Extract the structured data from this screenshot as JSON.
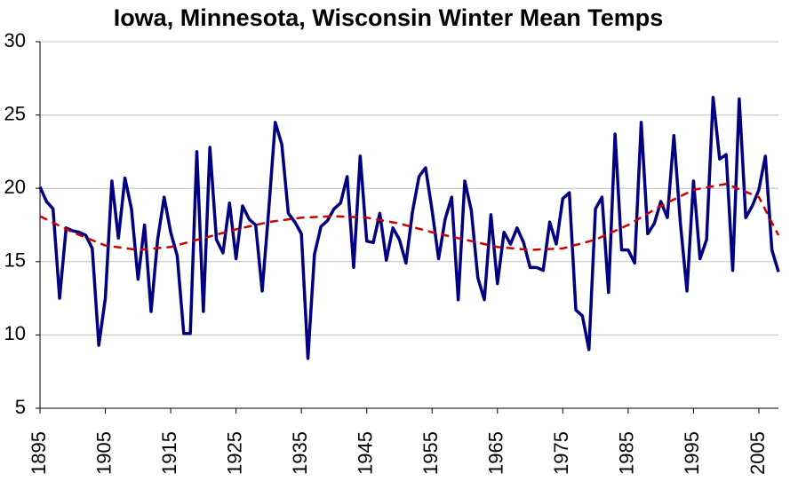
{
  "chart_data": {
    "type": "line",
    "title": "Iowa, Minnesota, Wisconsin Winter Mean Temps",
    "x": [
      1895,
      1896,
      1897,
      1898,
      1899,
      1900,
      1901,
      1902,
      1903,
      1904,
      1905,
      1906,
      1907,
      1908,
      1909,
      1910,
      1911,
      1912,
      1913,
      1914,
      1915,
      1916,
      1917,
      1918,
      1919,
      1920,
      1921,
      1922,
      1923,
      1924,
      1925,
      1926,
      1927,
      1928,
      1929,
      1930,
      1931,
      1932,
      1933,
      1934,
      1935,
      1936,
      1937,
      1938,
      1939,
      1940,
      1941,
      1942,
      1943,
      1944,
      1945,
      1946,
      1947,
      1948,
      1949,
      1950,
      1951,
      1952,
      1953,
      1954,
      1955,
      1956,
      1957,
      1958,
      1959,
      1960,
      1961,
      1962,
      1963,
      1964,
      1965,
      1966,
      1967,
      1968,
      1969,
      1970,
      1971,
      1972,
      1973,
      1974,
      1975,
      1976,
      1977,
      1978,
      1979,
      1980,
      1981,
      1982,
      1983,
      1984,
      1985,
      1986,
      1987,
      1988,
      1989,
      1990,
      1991,
      1992,
      1993,
      1994,
      1995,
      1996,
      1997,
      1998,
      1999,
      2000,
      2001,
      2002,
      2003,
      2004,
      2005,
      2006,
      2007,
      2008
    ],
    "series": [
      {
        "color": "#000080",
        "values": [
          20.1,
          19.1,
          18.6,
          12.5,
          17.3,
          17.1,
          17.0,
          16.8,
          15.9,
          9.3,
          12.5,
          20.5,
          16.6,
          20.7,
          18.6,
          13.8,
          17.5,
          11.6,
          16.5,
          19.4,
          17.0,
          15.4,
          10.1,
          10.1,
          22.5,
          11.6,
          22.8,
          16.5,
          15.6,
          19.0,
          15.2,
          18.8,
          17.9,
          17.5,
          13.0,
          18.5,
          24.5,
          23.0,
          18.3,
          17.7,
          16.9,
          8.4,
          15.5,
          17.4,
          17.8,
          18.6,
          19.0,
          20.8,
          14.6,
          22.2,
          16.4,
          16.3,
          18.3,
          15.1,
          17.3,
          16.5,
          14.9,
          18.4,
          20.8,
          21.4,
          18.5,
          15.2,
          17.9,
          19.4,
          12.4,
          20.5,
          18.5,
          13.9,
          12.4,
          18.2,
          13.5,
          17.0,
          16.2,
          17.3,
          16.3,
          14.6,
          14.6,
          14.4,
          17.7,
          16.2,
          19.3,
          19.7,
          11.7,
          11.3,
          9.0,
          18.6,
          19.4,
          12.9,
          23.7,
          15.8,
          15.8,
          14.9,
          24.5,
          16.9,
          17.6,
          19.1,
          18.0,
          23.6,
          17.6,
          13.0,
          20.5,
          15.2,
          16.5,
          26.2,
          22.0,
          22.3,
          14.4,
          26.1,
          18.0,
          18.8,
          19.9,
          22.2,
          15.8,
          14.3
        ]
      },
      {
        "color": "#cc0000",
        "dashed": true,
        "x": [
          1895,
          1900,
          1905,
          1910,
          1915,
          1920,
          1925,
          1930,
          1935,
          1940,
          1945,
          1950,
          1955,
          1960,
          1965,
          1970,
          1975,
          1980,
          1985,
          1990,
          1995,
          2000,
          2005,
          2008
        ],
        "values": [
          18.1,
          17.0,
          16.1,
          15.8,
          16.0,
          16.6,
          17.2,
          17.7,
          18.0,
          18.1,
          18.0,
          17.6,
          17.0,
          16.5,
          16.0,
          15.8,
          15.9,
          16.5,
          17.5,
          18.8,
          19.9,
          20.3,
          19.4,
          16.8
        ]
      }
    ],
    "xlim": [
      1895,
      2008
    ],
    "xticks": [
      1895,
      1905,
      1915,
      1925,
      1935,
      1945,
      1955,
      1965,
      1975,
      1985,
      1995,
      2005
    ],
    "ylim": [
      5,
      30
    ],
    "yticks": [
      5,
      10,
      15,
      20,
      25,
      30
    ],
    "grid": true
  }
}
